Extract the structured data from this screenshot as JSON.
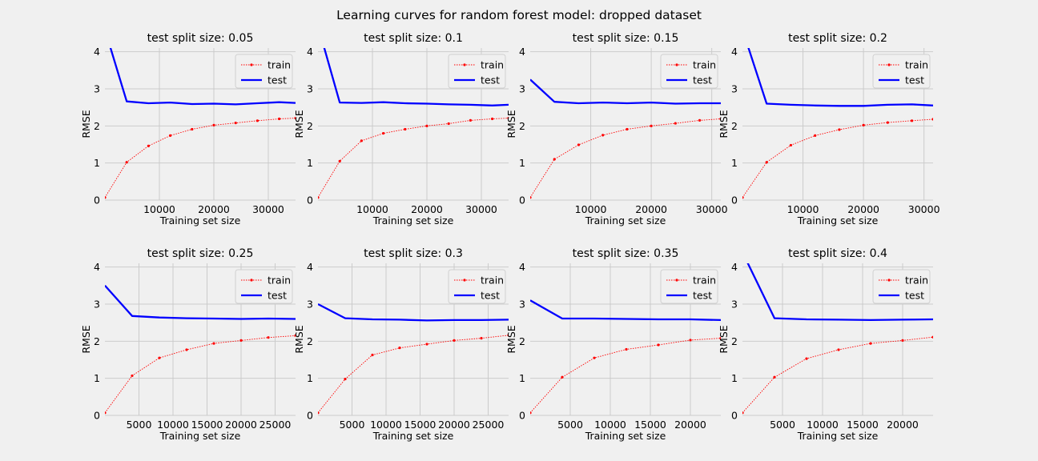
{
  "figure": {
    "title": "Learning curves for random forest model: dropped dataset"
  },
  "colors": {
    "background": "#f0f0f0",
    "grid": "#cbcbcb",
    "train": "#ff0000",
    "test": "#0000ff"
  },
  "chart_data": [
    {
      "type": "line",
      "title": "test split size: 0.05",
      "xlabel": "Training set size",
      "ylabel": "RMSE",
      "xlim": [
        0,
        35000
      ],
      "ylim": [
        0,
        4.1
      ],
      "xticks": [
        10000,
        20000,
        30000
      ],
      "yticks": [
        0,
        1,
        2,
        3,
        4
      ],
      "grid": true,
      "legend": "top-right",
      "series": [
        {
          "name": "train",
          "x": [
            0,
            4000,
            8000,
            12000,
            16000,
            20000,
            24000,
            28000,
            32000,
            35000
          ],
          "values": [
            0.07,
            1.02,
            1.46,
            1.74,
            1.91,
            2.02,
            2.08,
            2.14,
            2.19,
            2.21
          ]
        },
        {
          "name": "test",
          "x": [
            0,
            4000,
            8000,
            12000,
            16000,
            20000,
            24000,
            28000,
            32000,
            35000
          ],
          "values": [
            4.6,
            2.66,
            2.61,
            2.63,
            2.59,
            2.6,
            2.58,
            2.61,
            2.64,
            2.62
          ]
        }
      ]
    },
    {
      "type": "line",
      "title": "test split size: 0.1",
      "xlabel": "Training set size",
      "ylabel": "RMSE",
      "xlim": [
        0,
        35000
      ],
      "ylim": [
        0,
        4.1
      ],
      "xticks": [
        10000,
        20000,
        30000
      ],
      "yticks": [
        0,
        1,
        2,
        3,
        4
      ],
      "grid": true,
      "legend": "top-right",
      "series": [
        {
          "name": "train",
          "x": [
            0,
            4000,
            8000,
            12000,
            16000,
            20000,
            24000,
            28000,
            32000,
            35000
          ],
          "values": [
            0.07,
            1.05,
            1.6,
            1.8,
            1.91,
            2.0,
            2.06,
            2.15,
            2.19,
            2.21
          ]
        },
        {
          "name": "test",
          "x": [
            0,
            4000,
            8000,
            12000,
            16000,
            20000,
            24000,
            28000,
            32000,
            35000
          ],
          "values": [
            4.7,
            2.63,
            2.62,
            2.64,
            2.61,
            2.6,
            2.58,
            2.57,
            2.55,
            2.57
          ]
        }
      ]
    },
    {
      "type": "line",
      "title": "test split size: 0.15",
      "xlabel": "Training set size",
      "ylabel": "RMSE",
      "xlim": [
        0,
        31500
      ],
      "ylim": [
        0,
        4.1
      ],
      "xticks": [
        10000,
        20000,
        30000
      ],
      "yticks": [
        0,
        1,
        2,
        3,
        4
      ],
      "grid": true,
      "legend": "top-right",
      "series": [
        {
          "name": "train",
          "x": [
            0,
            4000,
            8000,
            12000,
            16000,
            20000,
            24000,
            28000,
            31500
          ],
          "values": [
            0.07,
            1.1,
            1.49,
            1.75,
            1.91,
            2.0,
            2.07,
            2.15,
            2.19
          ]
        },
        {
          "name": "test",
          "x": [
            0,
            4000,
            8000,
            12000,
            16000,
            20000,
            24000,
            28000,
            31500
          ],
          "values": [
            3.25,
            2.65,
            2.61,
            2.63,
            2.61,
            2.63,
            2.6,
            2.61,
            2.61
          ]
        }
      ]
    },
    {
      "type": "line",
      "title": "test split size: 0.2",
      "xlabel": "Training set size",
      "ylabel": "RMSE",
      "xlim": [
        0,
        31500
      ],
      "ylim": [
        0,
        4.1
      ],
      "xticks": [
        10000,
        20000,
        30000
      ],
      "yticks": [
        0,
        1,
        2,
        3,
        4
      ],
      "grid": true,
      "legend": "top-right",
      "series": [
        {
          "name": "train",
          "x": [
            0,
            4000,
            8000,
            12000,
            16000,
            20000,
            24000,
            28000,
            31500
          ],
          "values": [
            0.07,
            1.02,
            1.48,
            1.74,
            1.9,
            2.02,
            2.09,
            2.14,
            2.18
          ]
        },
        {
          "name": "test",
          "x": [
            0,
            4000,
            8000,
            12000,
            16000,
            20000,
            24000,
            28000,
            31500
          ],
          "values": [
            4.6,
            2.6,
            2.57,
            2.55,
            2.54,
            2.54,
            2.57,
            2.58,
            2.55
          ]
        }
      ]
    },
    {
      "type": "line",
      "title": "test split size: 0.25",
      "xlabel": "Training set size",
      "ylabel": "RMSE",
      "xlim": [
        0,
        28000
      ],
      "ylim": [
        0,
        4.1
      ],
      "xticks": [
        5000,
        10000,
        15000,
        20000,
        25000
      ],
      "yticks": [
        0,
        1,
        2,
        3,
        4
      ],
      "grid": true,
      "legend": "top-right",
      "series": [
        {
          "name": "train",
          "x": [
            0,
            4000,
            8000,
            12000,
            16000,
            20000,
            24000,
            28000
          ],
          "values": [
            0.07,
            1.07,
            1.55,
            1.77,
            1.94,
            2.02,
            2.1,
            2.15
          ]
        },
        {
          "name": "test",
          "x": [
            0,
            4000,
            8000,
            12000,
            16000,
            20000,
            24000,
            28000
          ],
          "values": [
            3.5,
            2.68,
            2.64,
            2.62,
            2.61,
            2.6,
            2.61,
            2.6
          ]
        }
      ]
    },
    {
      "type": "line",
      "title": "test split size: 0.3",
      "xlabel": "Training set size",
      "ylabel": "RMSE",
      "xlim": [
        0,
        28000
      ],
      "ylim": [
        0,
        4.1
      ],
      "xticks": [
        5000,
        10000,
        15000,
        20000,
        25000
      ],
      "yticks": [
        0,
        1,
        2,
        3,
        4
      ],
      "grid": true,
      "legend": "top-right",
      "series": [
        {
          "name": "train",
          "x": [
            0,
            4000,
            8000,
            12000,
            16000,
            20000,
            24000,
            28000
          ],
          "values": [
            0.07,
            0.98,
            1.63,
            1.82,
            1.92,
            2.02,
            2.08,
            2.16
          ]
        },
        {
          "name": "test",
          "x": [
            0,
            4000,
            8000,
            12000,
            16000,
            20000,
            24000,
            28000
          ],
          "values": [
            3.0,
            2.62,
            2.59,
            2.58,
            2.56,
            2.57,
            2.57,
            2.58
          ]
        }
      ]
    },
    {
      "type": "line",
      "title": "test split size: 0.35",
      "xlabel": "Training set size",
      "ylabel": "RMSE",
      "xlim": [
        0,
        23800
      ],
      "ylim": [
        0,
        4.1
      ],
      "xticks": [
        5000,
        10000,
        15000,
        20000
      ],
      "yticks": [
        0,
        1,
        2,
        3,
        4
      ],
      "grid": true,
      "legend": "top-right",
      "series": [
        {
          "name": "train",
          "x": [
            0,
            4000,
            8000,
            12000,
            16000,
            20000,
            23800
          ],
          "values": [
            0.07,
            1.03,
            1.55,
            1.78,
            1.9,
            2.03,
            2.08
          ]
        },
        {
          "name": "test",
          "x": [
            0,
            4000,
            8000,
            12000,
            16000,
            20000,
            23800
          ],
          "values": [
            3.1,
            2.61,
            2.61,
            2.6,
            2.59,
            2.59,
            2.57
          ]
        }
      ]
    },
    {
      "type": "line",
      "title": "test split size: 0.4",
      "xlabel": "Training set size",
      "ylabel": "RMSE",
      "xlim": [
        0,
        23800
      ],
      "ylim": [
        0,
        4.1
      ],
      "xticks": [
        5000,
        10000,
        15000,
        20000
      ],
      "yticks": [
        0,
        1,
        2,
        3,
        4
      ],
      "grid": true,
      "legend": "top-right",
      "series": [
        {
          "name": "train",
          "x": [
            0,
            4000,
            8000,
            12000,
            16000,
            20000,
            23800
          ],
          "values": [
            0.07,
            1.03,
            1.53,
            1.77,
            1.94,
            2.02,
            2.11
          ]
        },
        {
          "name": "test",
          "x": [
            0,
            4000,
            8000,
            12000,
            16000,
            20000,
            23800
          ],
          "values": [
            4.4,
            2.62,
            2.59,
            2.58,
            2.57,
            2.58,
            2.59
          ]
        }
      ]
    }
  ]
}
